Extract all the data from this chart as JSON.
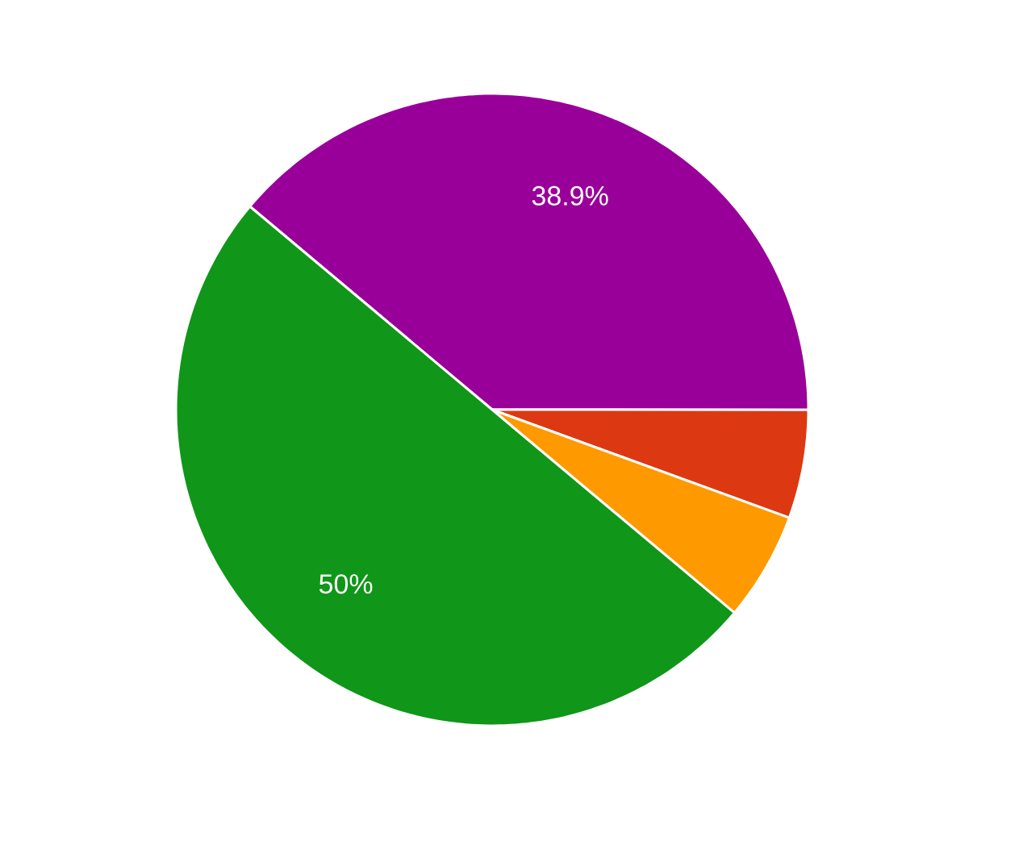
{
  "chart_data": {
    "type": "pie",
    "categories": [
      null,
      null,
      null,
      null
    ],
    "values": [
      38.9,
      5.55,
      5.55,
      50
    ],
    "colors": [
      "#990099",
      "#dc3912",
      "#ff9900",
      "#109618"
    ],
    "value_labels": [
      "38.9%",
      null,
      null,
      "50%"
    ]
  }
}
